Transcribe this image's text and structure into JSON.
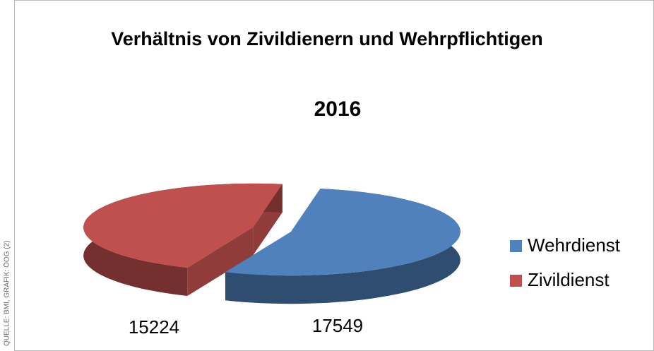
{
  "chart_data": {
    "type": "pie3d",
    "title": "Verhältnis von Zivildienern und Wehrpflichtigen",
    "subtitle": "2016",
    "categories": [
      "Wehrdienst",
      "Zivildienst"
    ],
    "values": [
      17549,
      15224
    ],
    "colors": [
      "#4f81bd",
      "#c0504d"
    ],
    "legend": "right",
    "source": "QUELLE: BMI, GRAFIK: ÖOG (2)"
  }
}
